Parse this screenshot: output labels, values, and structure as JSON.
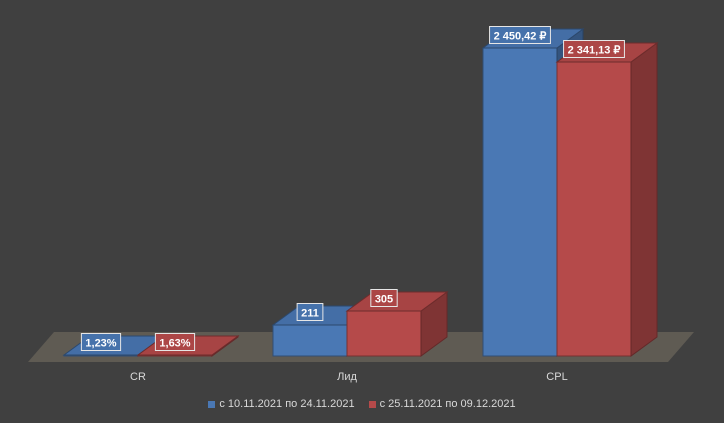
{
  "chart_data": {
    "type": "bar",
    "style": "3d-clustered-column",
    "categories": [
      "CR",
      "Лид",
      "CPL"
    ],
    "series": [
      {
        "name": "с 10.11.2021 по 24.11.2021",
        "color": "#4a78b4",
        "values": [
          1.23,
          211,
          2450.42
        ],
        "data_labels": [
          "1,23%",
          "211",
          "2 450,42 ₽"
        ]
      },
      {
        "name": "с 25.11.2021 по 09.12.2021",
        "color": "#b54a4a",
        "values": [
          1.63,
          305,
          2341.13
        ],
        "data_labels": [
          "1,63%",
          "305",
          "2 341,13 ₽"
        ]
      }
    ],
    "title": "",
    "xlabel": "",
    "ylabel": "",
    "ylim": [
      0,
      2450.42
    ],
    "axis_scaling": "each category scaled independently",
    "grid": false,
    "legend_position": "bottom",
    "background": "#404040",
    "floor_color": "#5f5b53"
  }
}
